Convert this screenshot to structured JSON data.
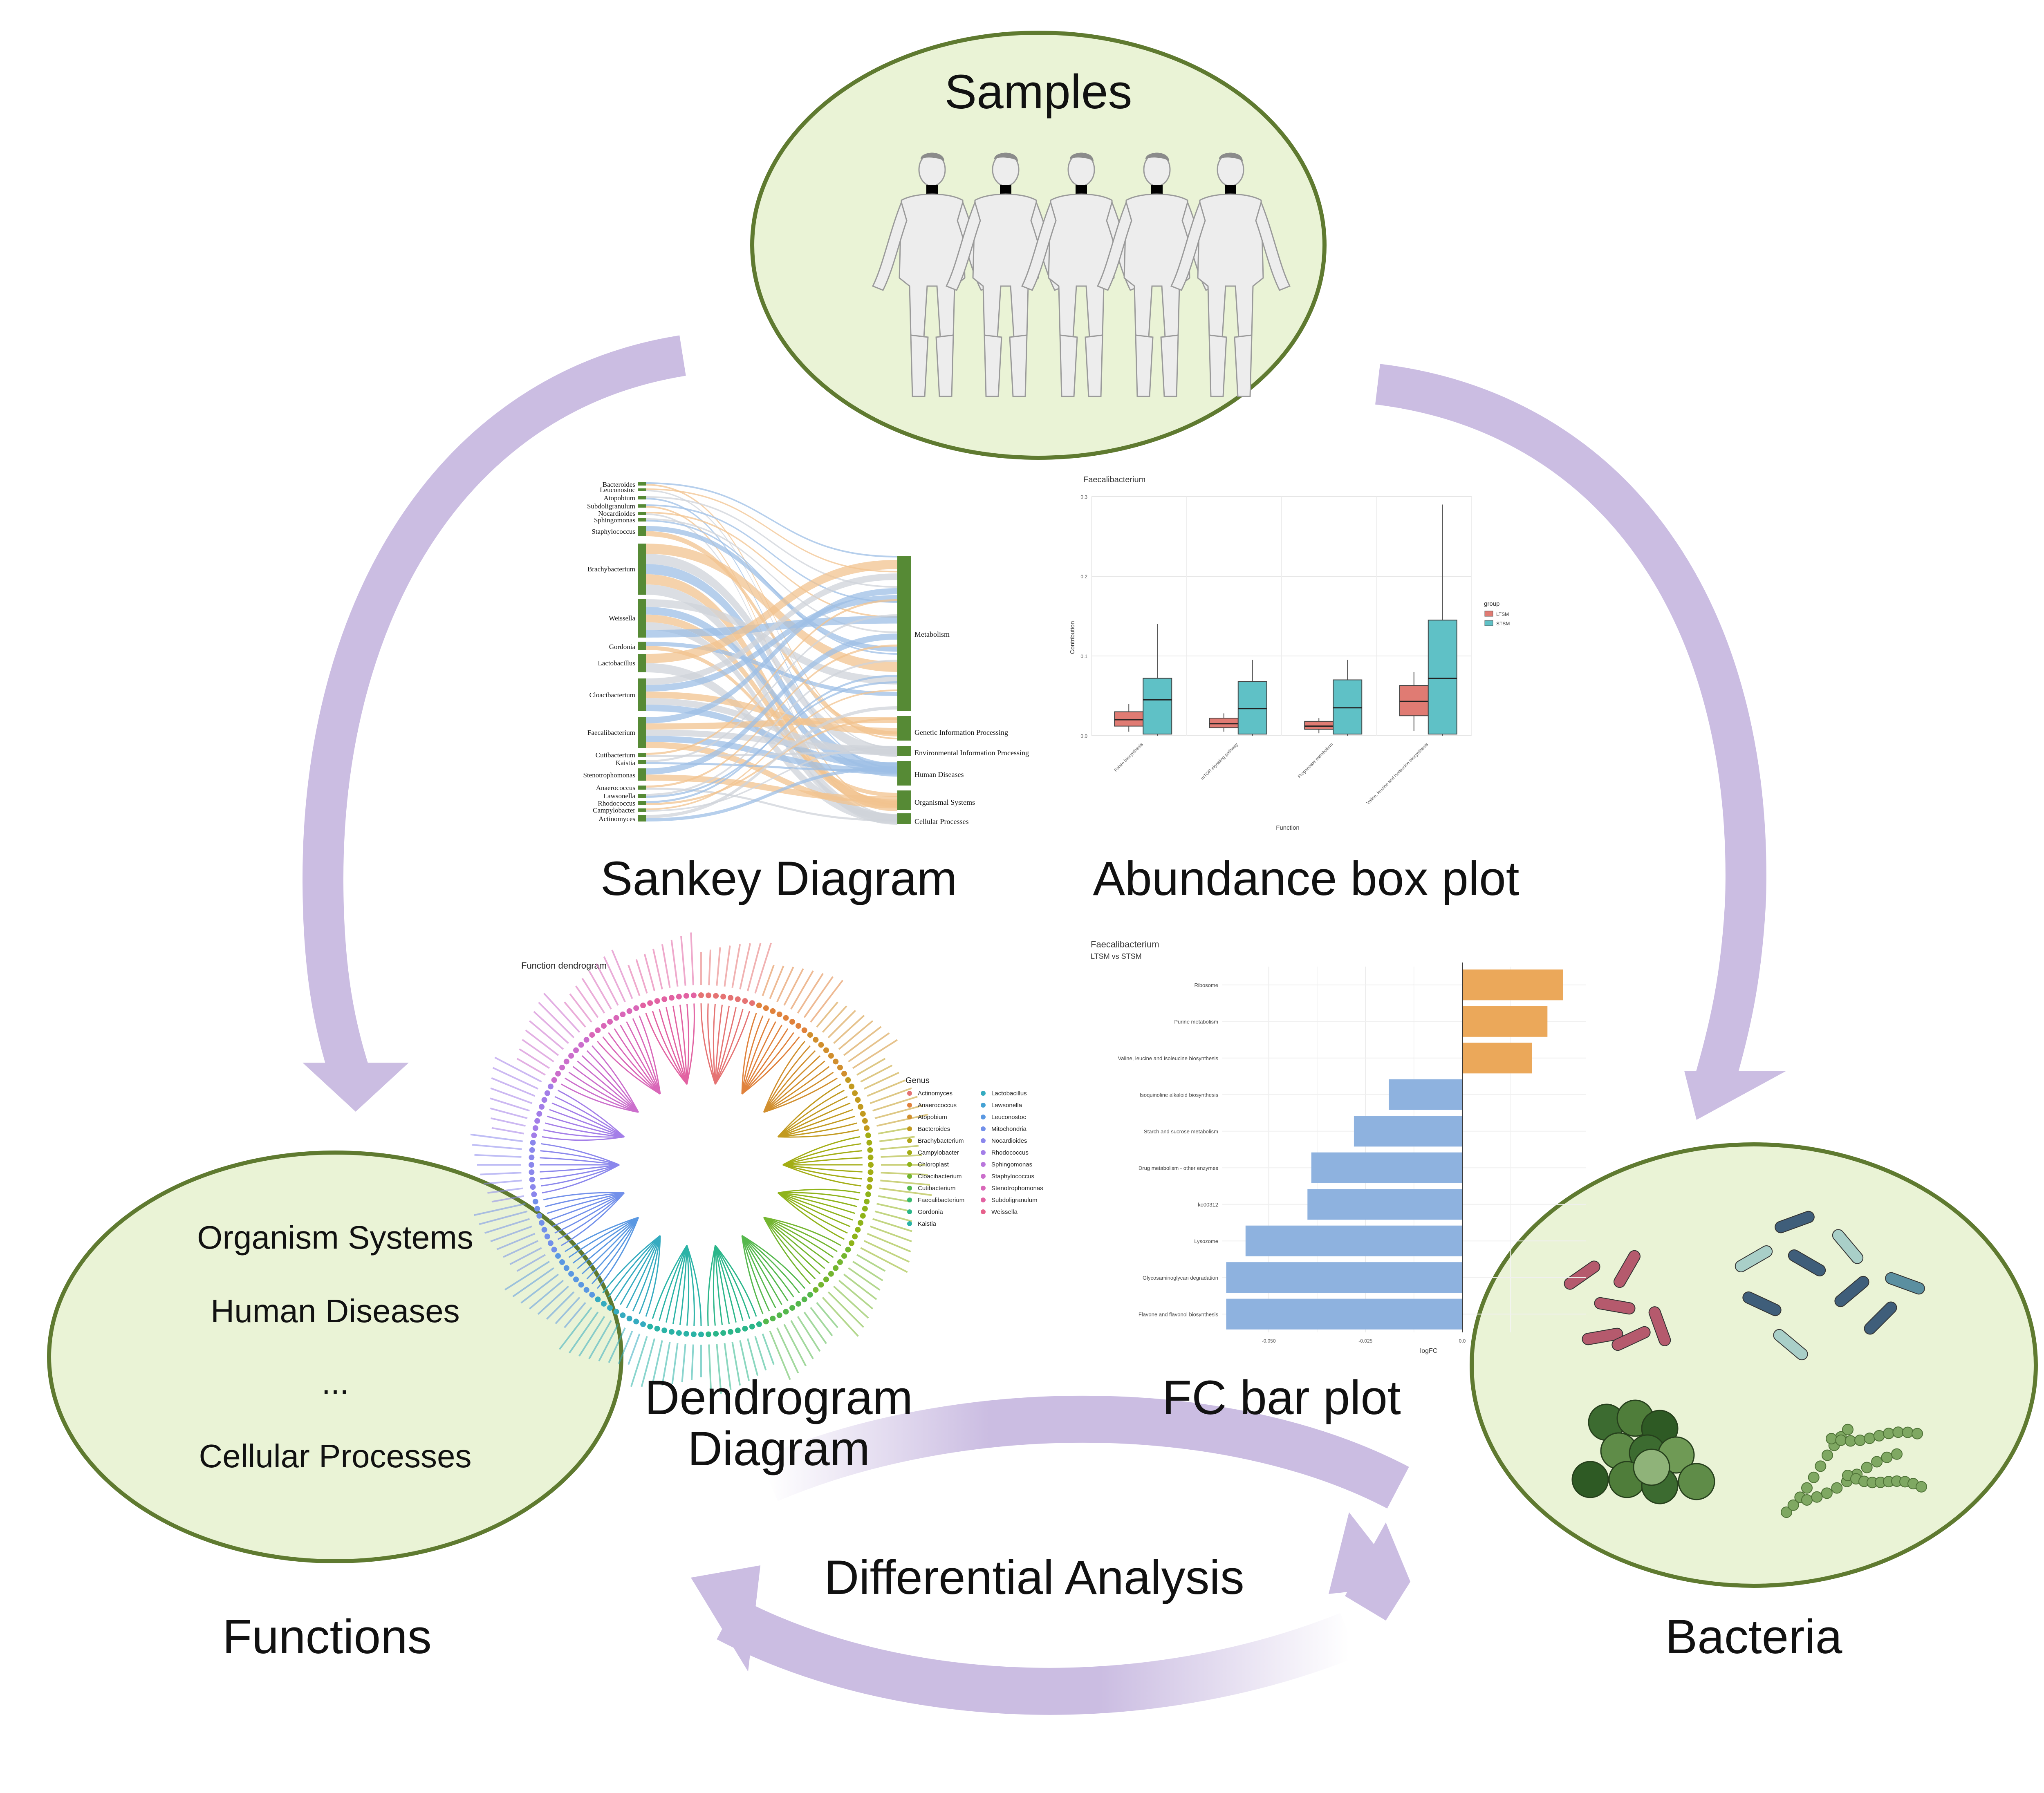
{
  "colors": {
    "ellipse_fill": "#eaf3d6",
    "ellipse_stroke": "#5f7a30",
    "arrow": "#cbbde2",
    "node_green": "#568a35",
    "flow_blue": "#9dbfe6",
    "flow_orange": "#f1c38f",
    "flow_grey": "#cfd3d9",
    "box_red": "#e07b73",
    "box_teal": "#5fc1c6",
    "bar_orange": "#eba85a",
    "bar_blue": "#8eb2df",
    "person": "#ededed"
  },
  "nodes": {
    "samples": {
      "title": "Samples",
      "icon": "human-figure-icon"
    },
    "functions": {
      "caption": "Functions",
      "items": [
        "Organism Systems",
        "Human Diseases",
        "...",
        "Cellular Processes"
      ]
    },
    "bacteria": {
      "caption": "Bacteria",
      "icon": "bacteria-icon"
    }
  },
  "center": {
    "label": "Differential Analysis"
  },
  "panels": {
    "sankey": {
      "caption": "Sankey Diagram",
      "left_nodes": [
        "Bacteroides",
        "Leuconostoc",
        "Atopobium",
        "Subdoligranulum",
        "Nocardioides",
        "Sphingomonas",
        "Staphylococcus",
        "Brachybacterium",
        "Weissella",
        "Gordonia",
        "Lactobacillus",
        "Cloacibacterium",
        "Faecalibacterium",
        "Cutibacterium",
        "Kaistia",
        "Stenotrophomonas",
        "Anaerococcus",
        "Lawsonella",
        "Rhodococcus",
        "Campylobacter",
        "Actinomyces"
      ],
      "right_nodes": [
        "Metabolism",
        "Genetic Information Processing",
        "Environmental Information Processing",
        "Human Diseases",
        "Organismal Systems",
        "Cellular Processes"
      ]
    },
    "box": {
      "caption": "Abundance box plot",
      "title": "Faecalibacterium",
      "xlabel": "Function",
      "ylabel": "Contribution",
      "legend_title": "group",
      "legend": [
        "LTSM",
        "STSM"
      ],
      "categories": [
        "Folate biosynthesis",
        "mTOR signaling pathway",
        "Propanoate metabolism",
        "Valine, leucine and isoleucine biosynthesis"
      ],
      "yticks": [
        "0.0",
        "0.1",
        "0.2",
        "0.3"
      ]
    },
    "dendro": {
      "caption": "Dendrogram Diagram",
      "title": "Function dendrogram",
      "legend_title": "Genus",
      "genus": [
        "Actinomyces",
        "Anaerococcus",
        "Atopobium",
        "Bacteroides",
        "Brachybacterium",
        "Campylobacter",
        "Chloroplast",
        "Cloacibacterium",
        "Cutibacterium",
        "Faecalibacterium",
        "Gordonia",
        "Kaistia",
        "Lactobacillus",
        "Lawsonella",
        "Leuconostoc",
        "Mitochondria",
        "Nocardioides",
        "Rhodococcus",
        "Sphingomonas",
        "Staphylococcus",
        "Stenotrophomonas",
        "Subdoligranulum",
        "Weissella"
      ],
      "genus_colors": [
        "#e57373",
        "#e0823c",
        "#d18f2e",
        "#c29a20",
        "#b3a51a",
        "#a3ad14",
        "#8fb31a",
        "#74b630",
        "#55b84d",
        "#3ab96c",
        "#2bb68a",
        "#2ab3a6",
        "#35abc0",
        "#45a2d4",
        "#5a98e2",
        "#7290ea",
        "#8b87ec",
        "#a37ee8",
        "#b976dc",
        "#cb6ecc",
        "#d967b8",
        "#e262a2",
        "#e6608b"
      ]
    },
    "fc": {
      "caption": "FC bar plot",
      "title": "Faecalibacterium",
      "subtitle": "LTSM vs STSM",
      "xlabel": "logFC",
      "xticks": [
        "-0.050",
        "-0.025",
        "0.0"
      ]
    }
  },
  "chart_data": [
    {
      "type": "box",
      "title": "Faecalibacterium",
      "xlabel": "Function",
      "ylabel": "Contribution",
      "ylim": [
        0,
        0.3
      ],
      "legend": "right",
      "categories": [
        "Folate biosynthesis",
        "mTOR signaling pathway",
        "Propanoate metabolism",
        "Valine, leucine and isoleucine biosynthesis"
      ],
      "series": [
        {
          "name": "LTSM",
          "boxes": [
            {
              "min": 0.005,
              "q1": 0.012,
              "median": 0.02,
              "q3": 0.03,
              "max": 0.04
            },
            {
              "min": 0.005,
              "q1": 0.01,
              "median": 0.015,
              "q3": 0.022,
              "max": 0.028
            },
            {
              "min": 0.003,
              "q1": 0.008,
              "median": 0.012,
              "q3": 0.018,
              "max": 0.022
            },
            {
              "min": 0.006,
              "q1": 0.025,
              "median": 0.043,
              "q3": 0.063,
              "max": 0.08
            }
          ]
        },
        {
          "name": "STSM",
          "boxes": [
            {
              "min": 0.0,
              "q1": 0.002,
              "median": 0.045,
              "q3": 0.072,
              "max": 0.14
            },
            {
              "min": 0.0,
              "q1": 0.002,
              "median": 0.034,
              "q3": 0.068,
              "max": 0.095
            },
            {
              "min": 0.0,
              "q1": 0.002,
              "median": 0.035,
              "q3": 0.07,
              "max": 0.095
            },
            {
              "min": 0.0,
              "q1": 0.002,
              "median": 0.072,
              "q3": 0.145,
              "max": 0.29
            }
          ]
        }
      ]
    },
    {
      "type": "bar",
      "orientation": "horizontal",
      "title": "Faecalibacterium",
      "subtitle": "LTSM vs STSM",
      "xlabel": "logFC",
      "xlim": [
        -0.062,
        0.032
      ],
      "categories": [
        "Ribosome",
        "Purine metabolism",
        "Valine, leucine and isoleucine biosynthesis",
        "Isoquinoline alkaloid biosynthesis",
        "Starch and sucrose metabolism",
        "Drug metabolism - other enzymes",
        "ko00312",
        "Lysozome",
        "Glycosaminoglycan degradation",
        "Flavone and flavonol biosynthesis"
      ],
      "values": [
        0.026,
        0.022,
        0.018,
        -0.019,
        -0.028,
        -0.039,
        -0.04,
        -0.056,
        -0.061,
        -0.061
      ]
    }
  ]
}
